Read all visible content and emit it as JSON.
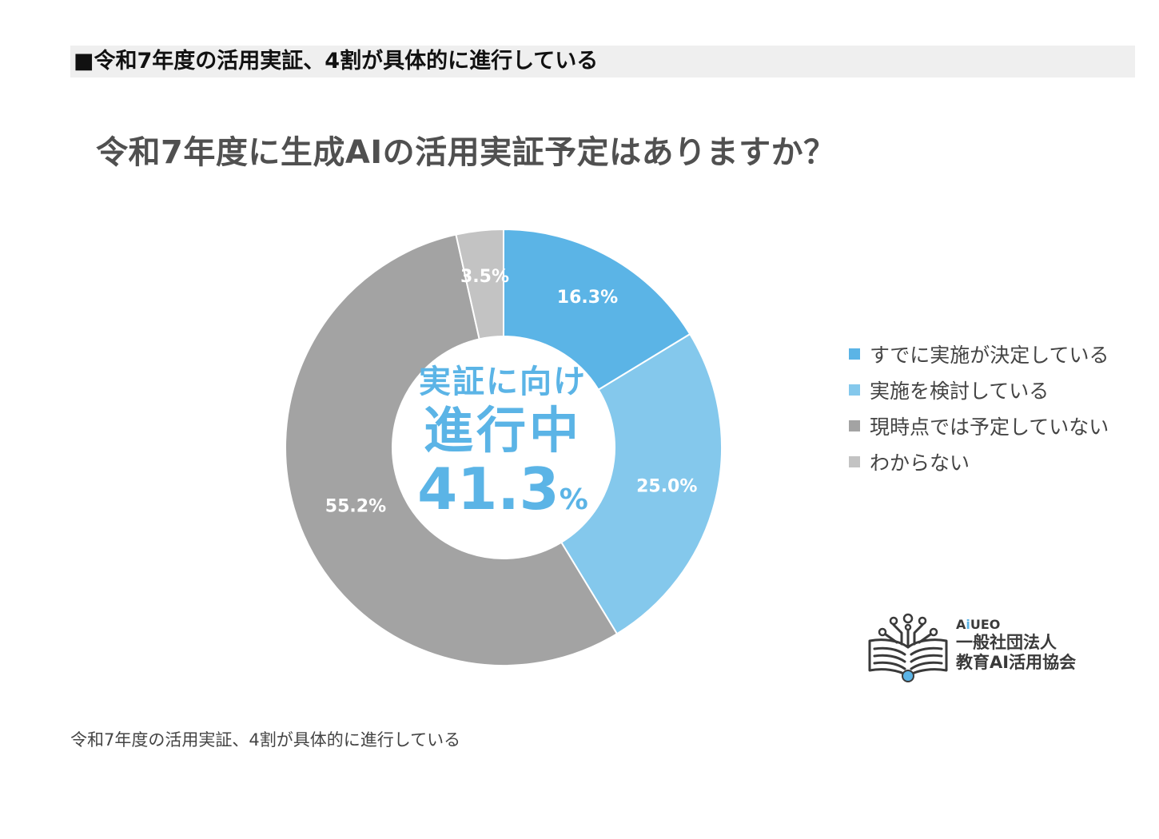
{
  "header": {
    "section_title": "■令和7年度の活用実証、4割が具体的に進行している"
  },
  "chart_data": {
    "type": "pie",
    "title": "令和7年度に生成AIの活用実証予定はありますか？",
    "categories": [
      "すでに実施が決定している",
      "実施を検討している",
      "現時点では予定していない",
      "わからない"
    ],
    "values": [
      16.3,
      25.0,
      55.2,
      3.5
    ],
    "value_labels": [
      "16.3%",
      "25.0%",
      "55.2%",
      "3.5%"
    ],
    "colors": [
      "#5bb4e6",
      "#84c8ec",
      "#a3a3a3",
      "#c3c3c3"
    ],
    "legend_position": "right",
    "center_text": {
      "line1": "実証に向け",
      "line2": "進行中",
      "line3_value": "41.3",
      "line3_unit": "%"
    }
  },
  "logo": {
    "brand_prefix": "A",
    "brand_i": "i",
    "brand_suffix": "UEO",
    "org_line1": "一般社団法人",
    "org_line2": "教育AI活用協会",
    "icon": "book-circuit-icon"
  },
  "caption": "令和7年度の活用実証、4割が具体的に進行している"
}
